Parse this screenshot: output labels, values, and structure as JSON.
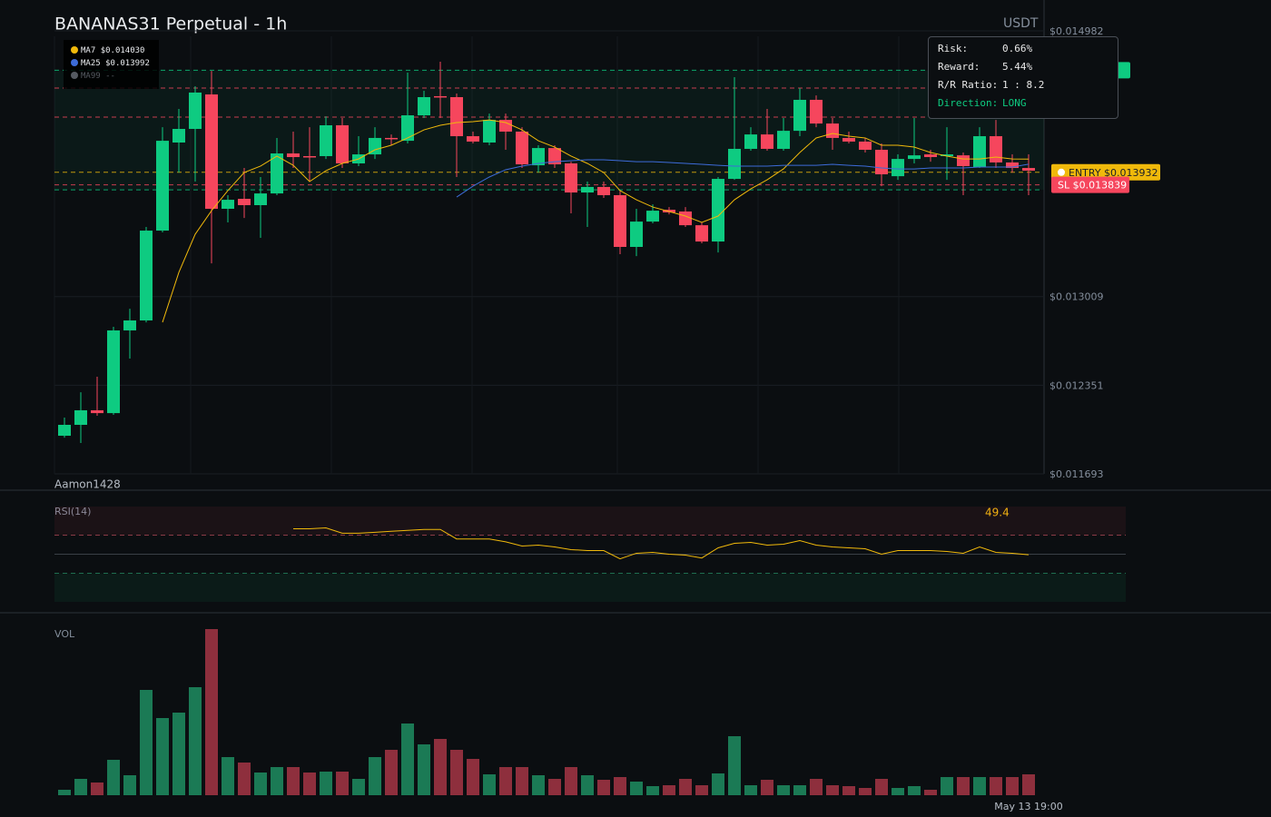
{
  "chart_data": {
    "type": "candlestick",
    "title": "BANANAS31 Perpetual - 1h",
    "currency": "USDT",
    "watermark": "Aamon1428",
    "categories": [
      null,
      null,
      null,
      null,
      null,
      null,
      null,
      null,
      null,
      null,
      null,
      null,
      null,
      null,
      null,
      null,
      null,
      null,
      null,
      null,
      null,
      null,
      null,
      null,
      null,
      null,
      null,
      null,
      null,
      null,
      null,
      null,
      null,
      null,
      null,
      null,
      null,
      null,
      null,
      null,
      null,
      null,
      null,
      null,
      null,
      null,
      null,
      null,
      null,
      null,
      null,
      null,
      null,
      null,
      null,
      null,
      null,
      null,
      null,
      "May 13 19:00"
    ],
    "open": [
      0.011976,
      0.012057,
      0.012165,
      0.012144,
      0.012758,
      0.012832,
      0.013499,
      0.014153,
      0.014254,
      0.01451,
      0.013661,
      0.013735,
      0.013688,
      0.013775,
      0.014072,
      0.014052,
      0.014052,
      0.014281,
      0.013998,
      0.014065,
      0.014187,
      0.014166,
      0.014355,
      0.014497,
      0.01449,
      0.0142,
      0.014153,
      0.014321,
      0.014234,
      0.013984,
      0.014112,
      0.013998,
      0.013782,
      0.013823,
      0.013762,
      0.013378,
      0.013566,
      0.013654,
      0.013641,
      0.013539,
      0.013418,
      0.013883,
      0.014106,
      0.014213,
      0.014106,
      0.01424,
      0.01447,
      0.014294,
      0.014187,
      0.01416,
      0.014099,
      0.013903,
      0.014031,
      0.014065,
      0.014052,
      0.014058,
      0.013971,
      0.0142,
      0.014005,
      0.013964
    ],
    "high": [
      0.012111,
      0.012299,
      0.012414,
      0.012785,
      0.012919,
      0.013526,
      0.014267,
      0.014402,
      0.014571,
      0.014685,
      0.013762,
      0.013964,
      0.013897,
      0.014187,
      0.014234,
      0.014267,
      0.014348,
      0.014335,
      0.0142,
      0.014267,
      0.014213,
      0.014672,
      0.014537,
      0.014753,
      0.014517,
      0.014234,
      0.014368,
      0.014368,
      0.014267,
      0.014133,
      0.014133,
      0.014011,
      0.013863,
      0.013863,
      0.013796,
      0.013661,
      0.013694,
      0.013674,
      0.013674,
      0.01356,
      0.013897,
      0.014638,
      0.014267,
      0.014402,
      0.014335,
      0.014557,
      0.014503,
      0.014335,
      0.014234,
      0.014187,
      0.014146,
      0.014065,
      0.014335,
      0.014099,
      0.014267,
      0.014079,
      0.014267,
      0.014321,
      0.014065,
      0.014065
    ],
    "low": [
      0.011962,
      0.011922,
      0.012124,
      0.012131,
      0.012549,
      0.012818,
      0.013486,
      0.01393,
      0.013863,
      0.013256,
      0.01356,
      0.013593,
      0.013445,
      0.013762,
      0.013964,
      0.013863,
      0.014031,
      0.013964,
      0.013978,
      0.014031,
      0.014133,
      0.014146,
      0.014335,
      0.014335,
      0.013897,
      0.014146,
      0.014133,
      0.014099,
      0.013964,
      0.01393,
      0.013964,
      0.013627,
      0.013526,
      0.013742,
      0.013324,
      0.01331,
      0.013553,
      0.01362,
      0.013526,
      0.013405,
      0.013337,
      0.013876,
      0.014092,
      0.014092,
      0.014092,
      0.0142,
      0.014267,
      0.014099,
      0.014146,
      0.014079,
      0.013829,
      0.013876,
      0.013998,
      0.014011,
      0.013876,
      0.013762,
      0.013964,
      0.013964,
      0.01393,
      0.013762
    ],
    "close": [
      0.012057,
      0.012165,
      0.012144,
      0.012758,
      0.012832,
      0.013499,
      0.014166,
      0.014254,
      0.014524,
      0.013661,
      0.013728,
      0.013688,
      0.013775,
      0.014072,
      0.014045,
      0.014045,
      0.014281,
      0.013998,
      0.014065,
      0.014187,
      0.01418,
      0.014355,
      0.01449,
      0.01449,
      0.0142,
      0.01416,
      0.014321,
      0.014234,
      0.013991,
      0.014112,
      0.013991,
      0.013782,
      0.013823,
      0.013762,
      0.013378,
      0.013566,
      0.013647,
      0.013634,
      0.013539,
      0.013418,
      0.013883,
      0.014106,
      0.014213,
      0.014106,
      0.01424,
      0.01447,
      0.014294,
      0.014187,
      0.01416,
      0.014099,
      0.013917,
      0.014031,
      0.014058,
      0.014045,
      0.014065,
      0.013978,
      0.0142,
      0.014005,
      0.013964,
      0.013944
    ],
    "up_color": "#0ecb81",
    "down_color": "#f6465d",
    "ylim": [
      0.011693,
      0.014982
    ],
    "yticks": [
      {
        "value": 0.011693,
        "label": "$0.011693"
      },
      {
        "value": 0.012351,
        "label": "$0.012351"
      },
      {
        "value": 0.013009,
        "label": "$0.013009"
      },
      {
        "value": 0.014982,
        "label": "$0.014982"
      }
    ],
    "series": [
      {
        "name": "MA7",
        "value_label": "$0.014030",
        "color": "#f0b90b",
        "values": [
          null,
          null,
          null,
          null,
          null,
          null,
          0.012818,
          0.013189,
          0.013472,
          0.013647,
          0.013796,
          0.01393,
          0.013978,
          0.014052,
          0.013984,
          0.013863,
          0.013944,
          0.013998,
          0.014031,
          0.014099,
          0.014133,
          0.014187,
          0.014247,
          0.014281,
          0.014301,
          0.014308,
          0.014321,
          0.014301,
          0.014247,
          0.014166,
          0.014119,
          0.014052,
          0.013998,
          0.01393,
          0.013796,
          0.013728,
          0.013674,
          0.013641,
          0.013607,
          0.01356,
          0.013607,
          0.013728,
          0.013809,
          0.013876,
          0.013957,
          0.014079,
          0.014187,
          0.01422,
          0.0142,
          0.014187,
          0.014133,
          0.014133,
          0.014119,
          0.014079,
          0.014052,
          0.014031,
          0.014031,
          0.014045,
          0.014031,
          0.01403
        ]
      },
      {
        "name": "MA25",
        "value_label": "$0.013992",
        "color": "#3d6bd8",
        "values": [
          null,
          null,
          null,
          null,
          null,
          null,
          null,
          null,
          null,
          null,
          null,
          null,
          null,
          null,
          null,
          null,
          null,
          null,
          null,
          null,
          null,
          null,
          null,
          null,
          0.013748,
          0.013829,
          0.013897,
          0.013951,
          0.013978,
          0.013998,
          0.014011,
          0.014018,
          0.014025,
          0.014025,
          0.014018,
          0.014011,
          0.014011,
          0.014005,
          0.013998,
          0.013991,
          0.013984,
          0.013978,
          0.013978,
          0.013978,
          0.013984,
          0.013984,
          0.013984,
          0.013991,
          0.013984,
          0.013978,
          0.013964,
          0.013957,
          0.013957,
          0.013964,
          0.013964,
          0.013964,
          0.013971,
          0.013971,
          0.013971,
          0.013992
        ]
      },
      {
        "name": "MA99",
        "value_label": "--",
        "color": "#555a61",
        "values": [
          null,
          null,
          null,
          null,
          null,
          null,
          null,
          null,
          null,
          null,
          null,
          null,
          null,
          null,
          null,
          null,
          null,
          null,
          null,
          null,
          null,
          null,
          null,
          null,
          null,
          null,
          null,
          null,
          null,
          null,
          null,
          null,
          null,
          null,
          null,
          null,
          null,
          null,
          null,
          null,
          null,
          null,
          null,
          null,
          null,
          null,
          null,
          null,
          null,
          null,
          null,
          null,
          null,
          null,
          null,
          null,
          null,
          null,
          null,
          null
        ]
      }
    ],
    "levels": [
      {
        "label": "ENTRY $0.013932",
        "value": 0.013932,
        "color": "#f0b90b"
      },
      {
        "label": "SL $0.013839",
        "value": 0.013839,
        "color": "#f6465d"
      },
      {
        "value": 0.01469,
        "color": "#0ecb81"
      },
      {
        "value": 0.014557,
        "color": "#f6465d"
      },
      {
        "value": 0.014342,
        "color": "#f6465d"
      },
      {
        "value": 0.013802,
        "color": "#0ecb81"
      }
    ],
    "rsi": {
      "title": "RSI(14)",
      "color": "#f0b90b",
      "value_label": "49.4",
      "ylim": [
        0,
        100
      ],
      "levels": [
        70,
        50,
        30
      ],
      "values": [
        null,
        null,
        null,
        null,
        null,
        null,
        null,
        null,
        null,
        null,
        null,
        null,
        null,
        null,
        76.7,
        76.7,
        77.6,
        72,
        72,
        73,
        74,
        75,
        76,
        76,
        66,
        66,
        66,
        63,
        58.6,
        59.5,
        57.6,
        54.8,
        53.8,
        53.8,
        45.2,
        51,
        51.9,
        50,
        49,
        46,
        56.7,
        61.4,
        62.4,
        59.5,
        60.5,
        64.3,
        59.5,
        57.6,
        56.7,
        55.7,
        50,
        53.8,
        53.8,
        53.8,
        52.9,
        51,
        57.6,
        51.9,
        51,
        49.4
      ]
    },
    "volume": {
      "title": "VOL",
      "values": [
        6,
        18,
        14,
        39,
        22,
        116,
        85,
        91,
        119,
        183,
        42,
        36,
        25,
        31,
        31,
        25,
        26,
        26,
        18,
        42,
        50,
        79,
        56,
        62,
        50,
        40,
        23,
        31,
        31,
        22,
        18,
        31,
        22,
        17,
        20,
        15,
        10,
        11,
        18,
        11,
        24,
        65,
        11,
        17,
        11,
        11,
        18,
        11,
        10,
        8,
        18,
        8,
        10,
        6,
        20,
        20,
        20,
        20,
        20,
        23
      ]
    },
    "tooltip": {
      "rows": [
        [
          "Risk:",
          "0.66%"
        ],
        [
          "Reward:",
          "5.44%"
        ],
        [
          "R/R Ratio:",
          "1 : 8.2"
        ],
        [
          "Direction:",
          "LONG"
        ]
      ]
    }
  }
}
